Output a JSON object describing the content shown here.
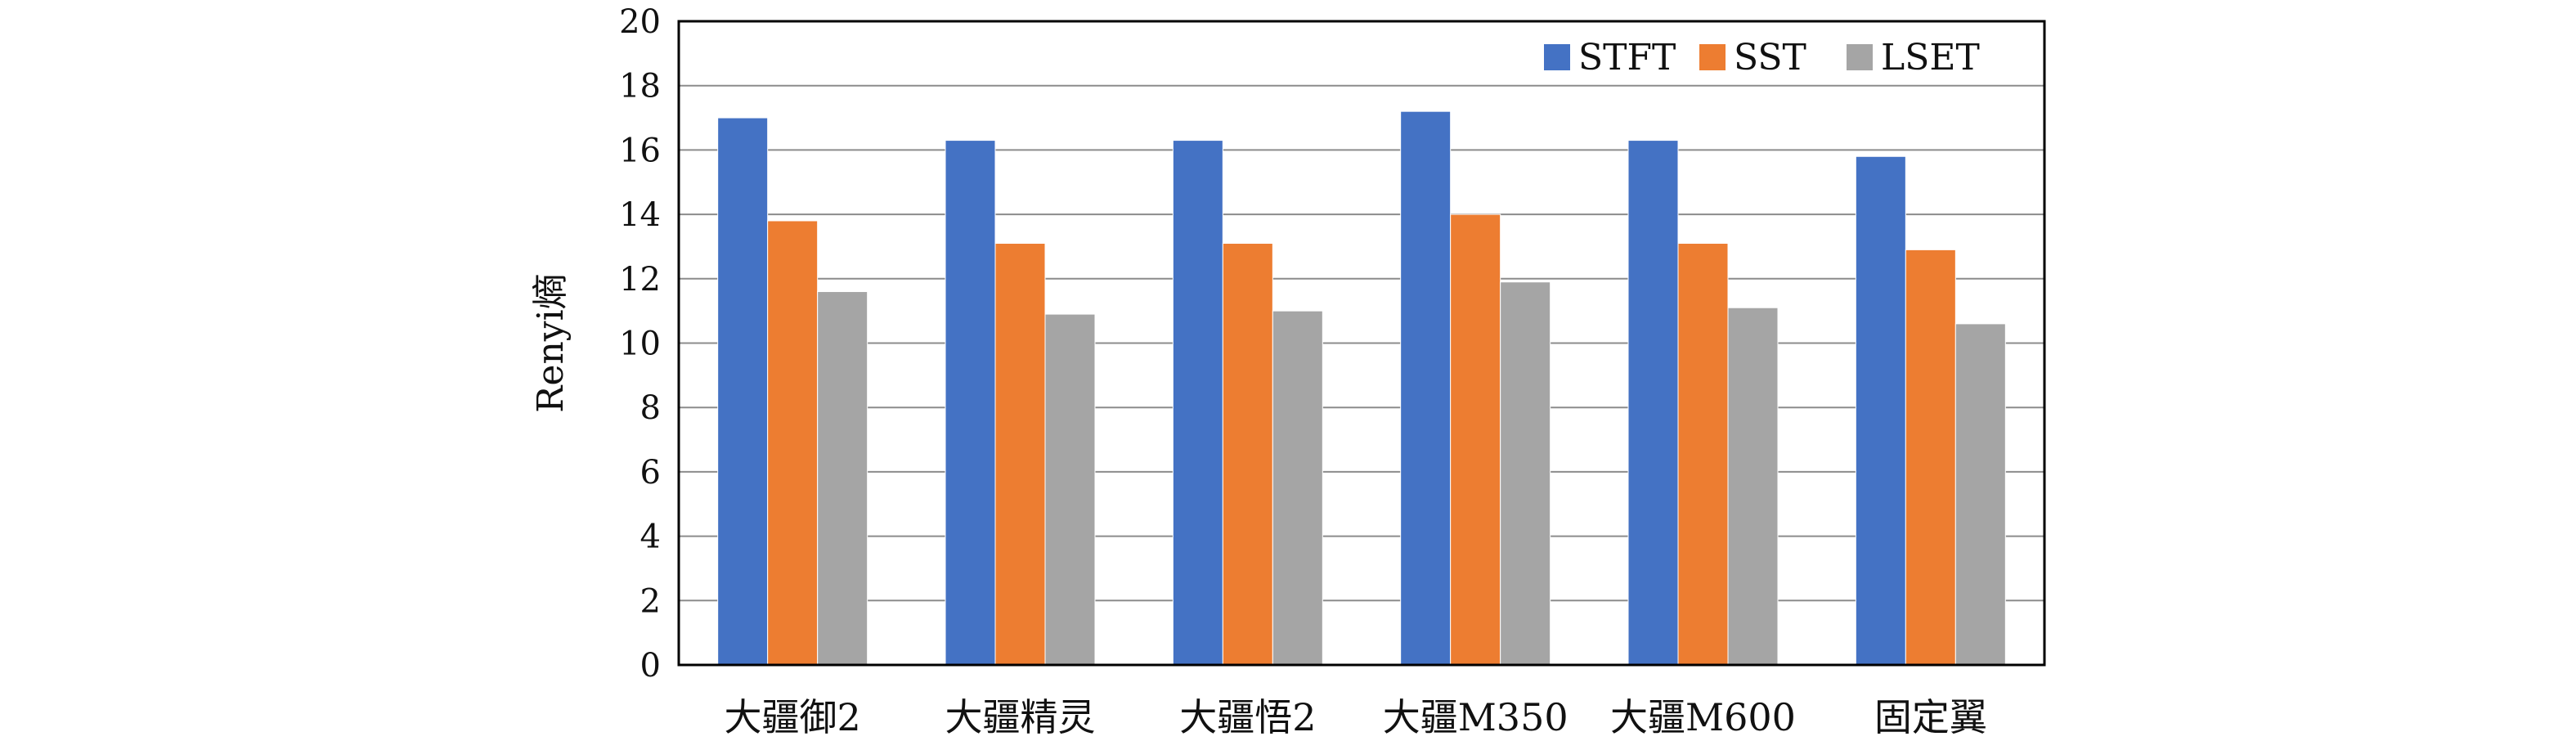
{
  "chart_data": {
    "type": "bar",
    "title": "",
    "xlabel": "",
    "ylabel": "Renyi熵",
    "ylim": [
      0,
      20
    ],
    "yticks": [
      0,
      2,
      4,
      6,
      8,
      10,
      12,
      14,
      16,
      18,
      20
    ],
    "grid": true,
    "legend_position": "top-right",
    "categories": [
      "大疆御2",
      "大疆精灵",
      "大疆悟2",
      "大疆M350",
      "大疆M600",
      "固定翼"
    ],
    "series": [
      {
        "name": "STFT",
        "color": "#4472C4",
        "values": [
          17.0,
          16.3,
          16.3,
          17.2,
          16.3,
          15.8
        ]
      },
      {
        "name": "SST",
        "color": "#ED7D31",
        "values": [
          13.8,
          13.1,
          13.1,
          14.0,
          13.1,
          12.9
        ]
      },
      {
        "name": "LSET",
        "color": "#A5A5A5",
        "values": [
          11.6,
          10.9,
          11.0,
          11.9,
          11.1,
          10.6
        ]
      }
    ]
  }
}
